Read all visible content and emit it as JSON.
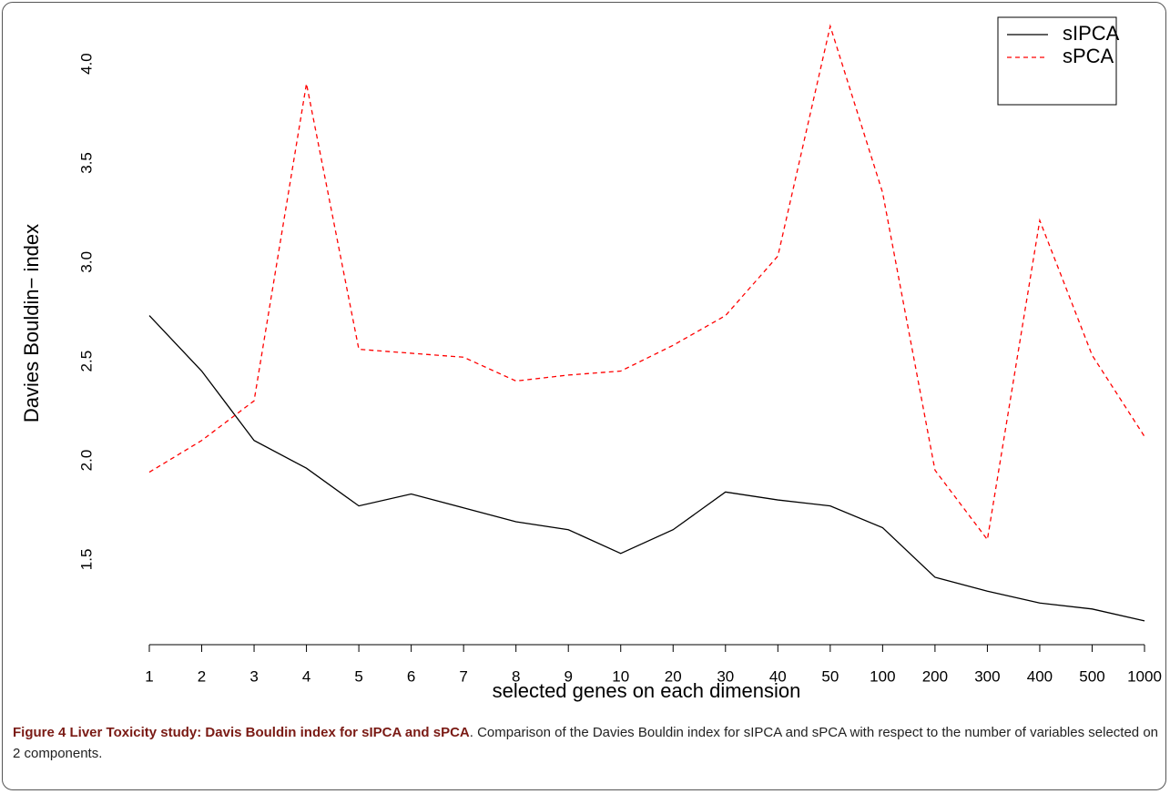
{
  "chart_data": {
    "type": "line",
    "xlabel": "selected genes on each dimension",
    "ylabel": "Davies Bouldin− index",
    "categories": [
      "1",
      "2",
      "3",
      "4",
      "5",
      "6",
      "7",
      "8",
      "9",
      "10",
      "20",
      "30",
      "40",
      "50",
      "100",
      "200",
      "300",
      "400",
      "500",
      "1000"
    ],
    "series": [
      {
        "name": "sIPCA",
        "color": "#000000",
        "dash": "solid",
        "values": [
          2.73,
          2.45,
          2.1,
          1.96,
          1.77,
          1.83,
          1.76,
          1.69,
          1.65,
          1.53,
          1.65,
          1.84,
          1.8,
          1.77,
          1.66,
          1.41,
          1.34,
          1.28,
          1.25,
          1.19
        ]
      },
      {
        "name": "sPCA",
        "color": "#ff0000",
        "dash": "dashed",
        "values": [
          1.94,
          2.1,
          2.3,
          3.9,
          2.56,
          2.54,
          2.52,
          2.4,
          2.43,
          2.45,
          2.58,
          2.73,
          3.03,
          4.19,
          3.35,
          1.95,
          1.6,
          3.21,
          2.53,
          2.12
        ]
      }
    ],
    "ylim": [
      1.07,
      4.23
    ],
    "yticks": [
      1.5,
      {
        "value": 2,
        "label": "2.0"
      },
      2.5,
      {
        "value": 3,
        "label": "3.0"
      },
      3.5,
      {
        "value": 4,
        "label": "4.0"
      }
    ],
    "legend": "topright",
    "grid": false
  },
  "caption": {
    "title": "Figure 4 Liver Toxicity study: Davis Bouldin index for sIPCA and sPCA",
    "text": ". Comparison of the Davies Bouldin index for sIPCA and sPCA with respect to the number of variables selected on 2 components."
  }
}
